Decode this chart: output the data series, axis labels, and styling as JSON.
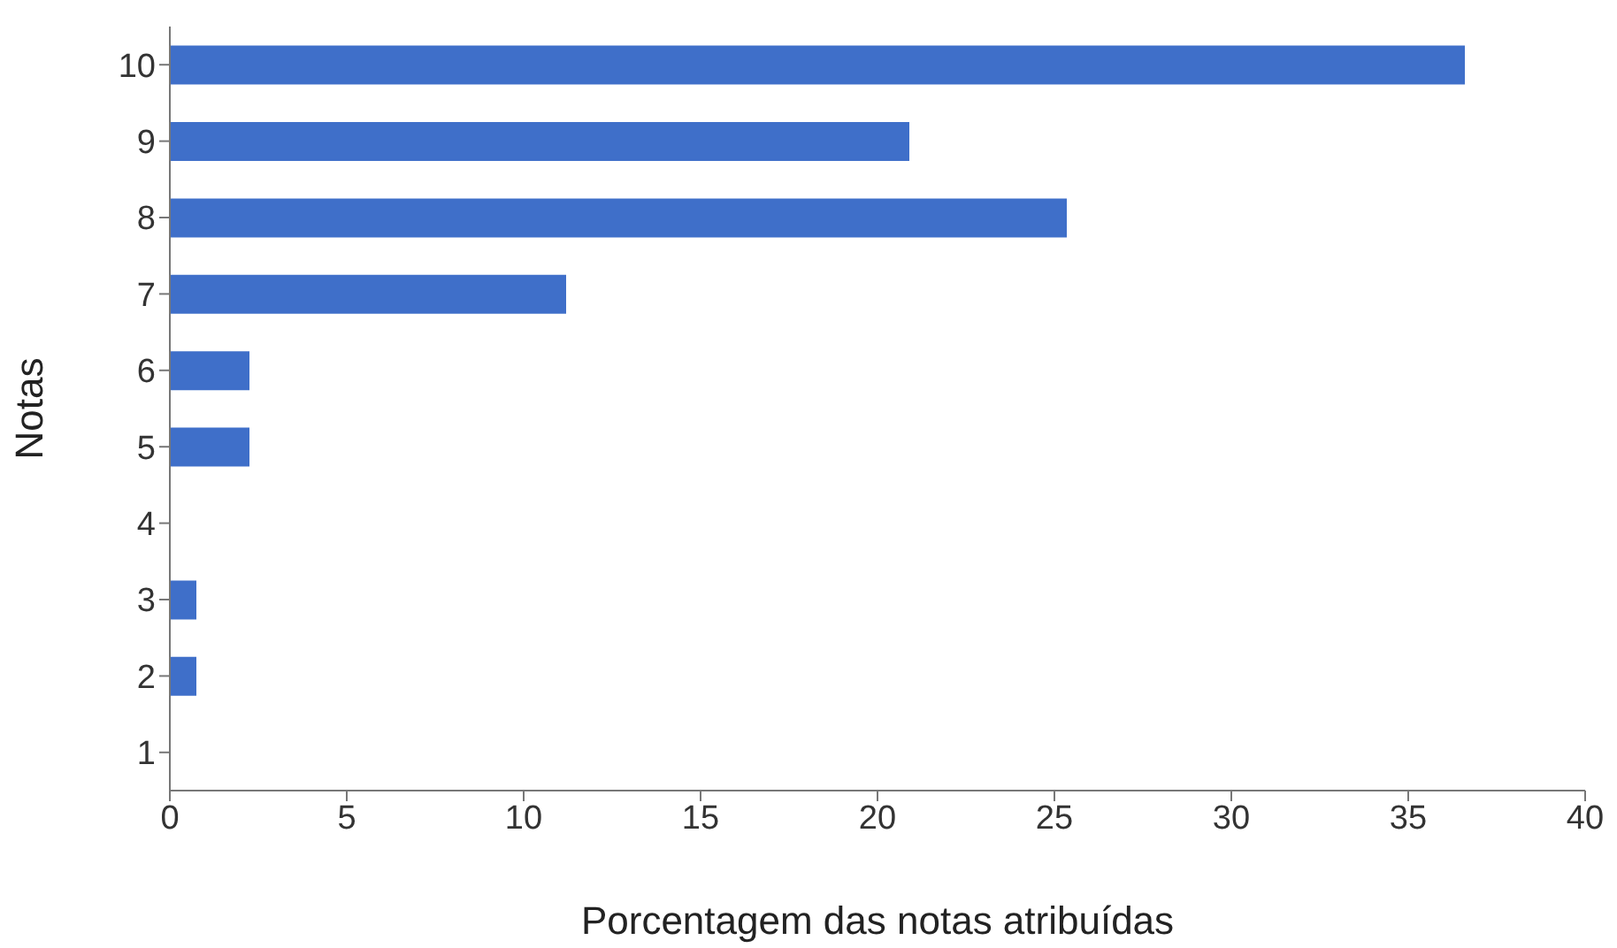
{
  "chart_data": {
    "type": "bar",
    "orientation": "horizontal",
    "xlabel": "Porcentagem das notas atribuídas",
    "ylabel": "Notas",
    "categories": [
      "10",
      "9",
      "8",
      "7",
      "6",
      "5",
      "4",
      "3",
      "2",
      "1"
    ],
    "values": [
      36.6,
      20.9,
      25.35,
      11.2,
      2.25,
      2.25,
      0,
      0.75,
      0.75,
      0
    ],
    "color": "#3f6fc9",
    "xlim": [
      0,
      40
    ],
    "xticks": [
      0,
      5,
      10,
      15,
      20,
      25,
      30,
      35,
      40
    ],
    "grid": false,
    "legend": false
  }
}
